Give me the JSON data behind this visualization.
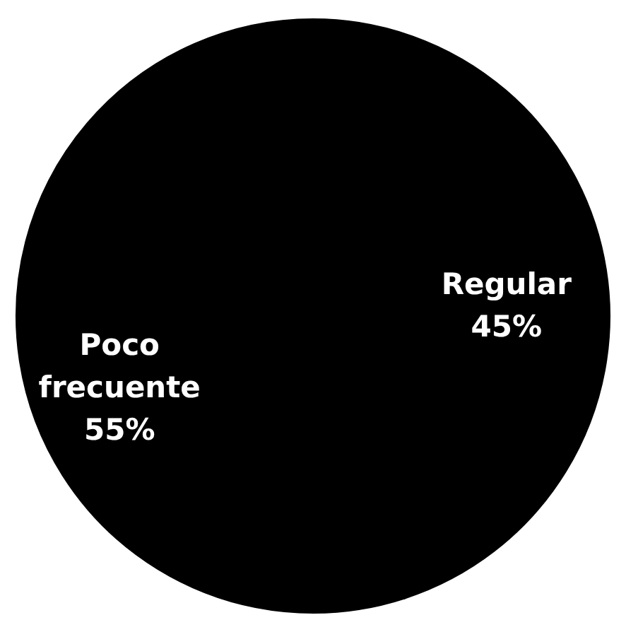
{
  "chart_data": {
    "type": "pie",
    "categories": [
      "Regular",
      "Poco frecuente"
    ],
    "values": [
      45,
      55
    ],
    "colors": [
      "#000000",
      "#000000"
    ],
    "value_labels": [
      "45%",
      "55%"
    ]
  }
}
